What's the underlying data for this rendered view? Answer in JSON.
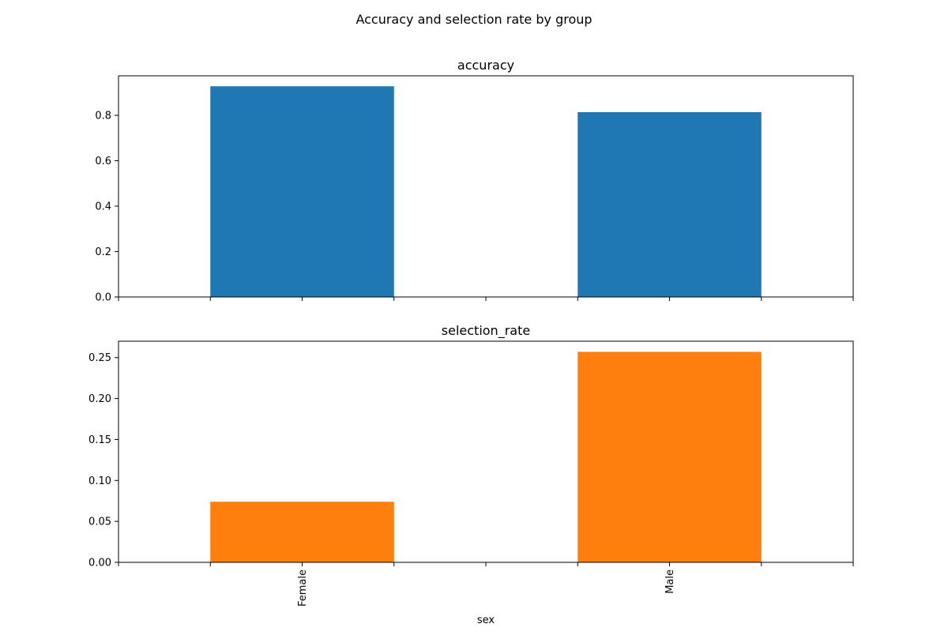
{
  "figure": {
    "suptitle": "Accuracy and selection rate by group"
  },
  "chart_data": [
    {
      "type": "bar",
      "title": "accuracy",
      "categories": [
        "Female",
        "Male"
      ],
      "values": [
        0.928,
        0.814
      ],
      "color": "#1f77b4",
      "ylim": [
        0,
        0.974
      ],
      "yticks": [
        0.0,
        0.2,
        0.4,
        0.6,
        0.8
      ],
      "ytick_labels": [
        "0.0",
        "0.2",
        "0.4",
        "0.6",
        "0.8"
      ],
      "xlabel": "",
      "ylabel": "",
      "grid": false,
      "show_xticklabels": false
    },
    {
      "type": "bar",
      "title": "selection_rate",
      "categories": [
        "Female",
        "Male"
      ],
      "values": [
        0.074,
        0.257
      ],
      "color": "#ff7f0e",
      "ylim": [
        0,
        0.27
      ],
      "yticks": [
        0.0,
        0.05,
        0.1,
        0.15,
        0.2,
        0.25
      ],
      "ytick_labels": [
        "0.00",
        "0.05",
        "0.10",
        "0.15",
        "0.20",
        "0.25"
      ],
      "xlabel": "sex",
      "ylabel": "",
      "grid": false,
      "show_xticklabels": true
    }
  ]
}
